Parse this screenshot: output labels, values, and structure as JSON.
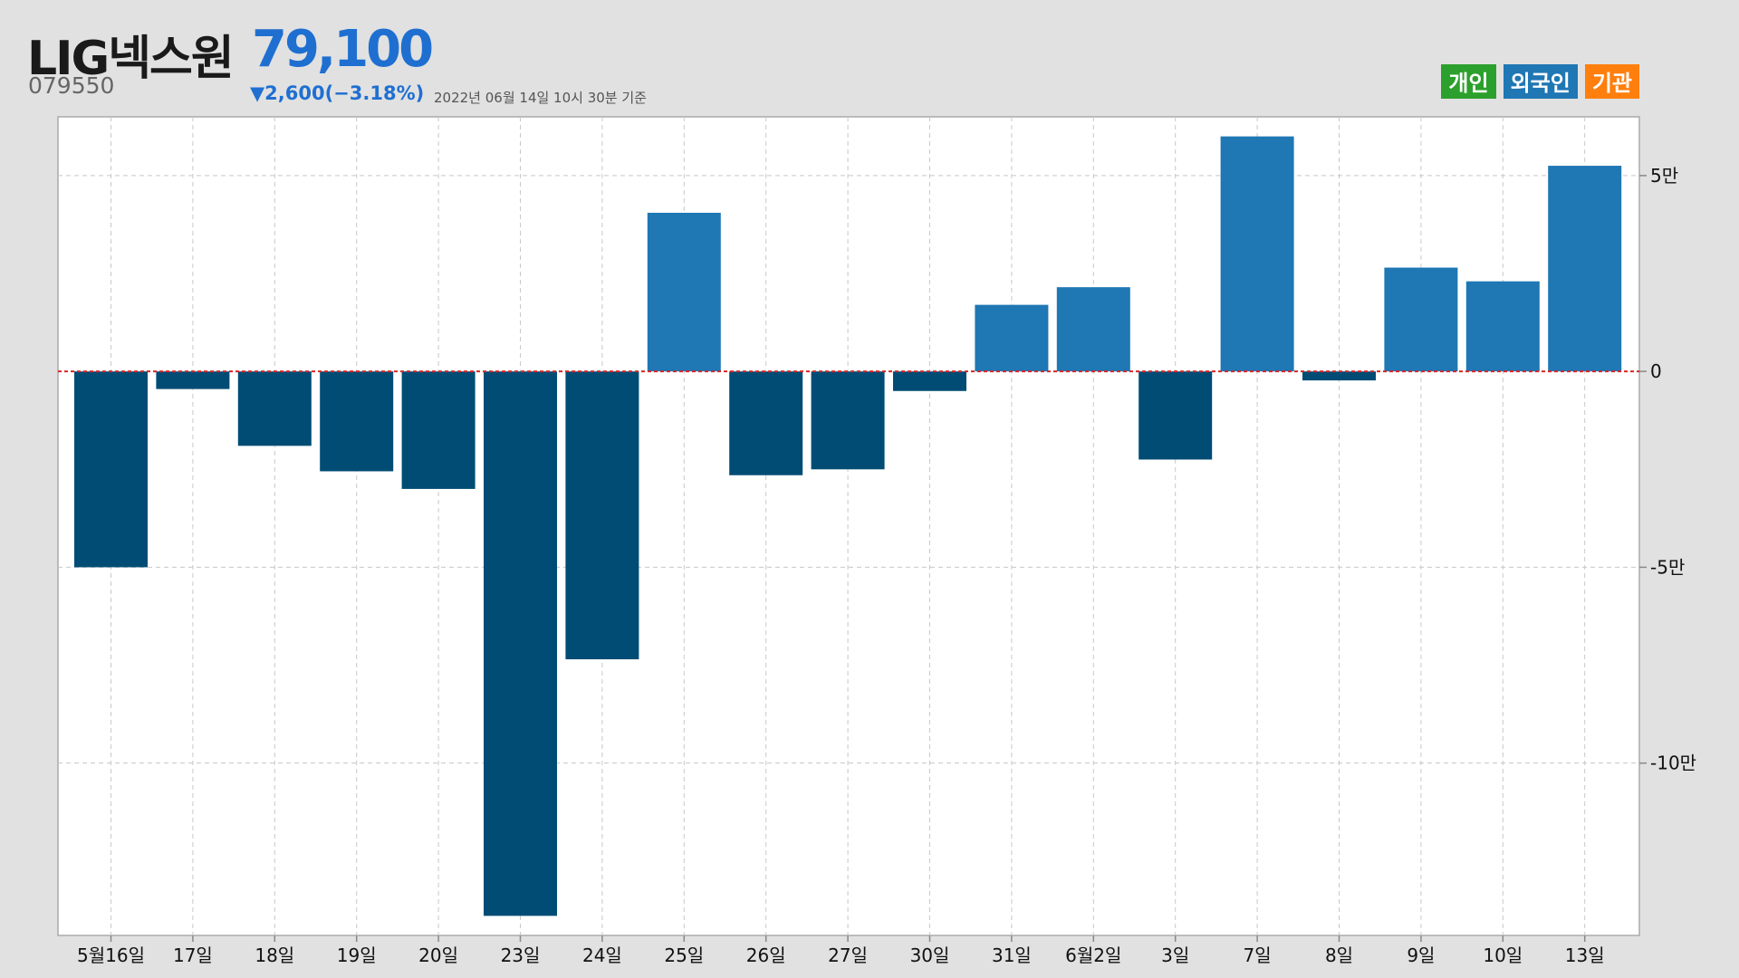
{
  "header": {
    "stock_name": "LIG넥스원",
    "price": "79,100",
    "code": "079550",
    "change": "▼2,600(−3.18%)",
    "timestamp": "2022년 06월 14일 10시 30분 기준"
  },
  "legend": [
    {
      "label": "개인",
      "color": "#2ca02c"
    },
    {
      "label": "외국인",
      "color": "#1f77b4"
    },
    {
      "label": "기관",
      "color": "#ff7f0e"
    }
  ],
  "chart_data": {
    "type": "bar",
    "series_name": "외국인",
    "categories": [
      "5월16일",
      "17일",
      "18일",
      "19일",
      "20일",
      "23일",
      "24일",
      "25일",
      "26일",
      "27일",
      "30일",
      "31일",
      "6월2일",
      "3일",
      "7일",
      "8일",
      "9일",
      "10일",
      "13일"
    ],
    "values": [
      -50000,
      -4500,
      -19000,
      -25500,
      -30000,
      -139000,
      -73500,
      40500,
      -26500,
      -25000,
      -5000,
      17000,
      21500,
      -22500,
      60000,
      -2300,
      26500,
      23000,
      52500
    ],
    "positive_color": "#1f77b4",
    "negative_color": "#004c74",
    "zero_line_color": "#d62728",
    "ylim": [
      -144000,
      65000
    ],
    "yticks": [
      {
        "value": 50000,
        "label": "5만"
      },
      {
        "value": 0,
        "label": "0"
      },
      {
        "value": -50000,
        "label": "-5만"
      },
      {
        "value": -100000,
        "label": "-10만"
      }
    ],
    "grid": true
  }
}
